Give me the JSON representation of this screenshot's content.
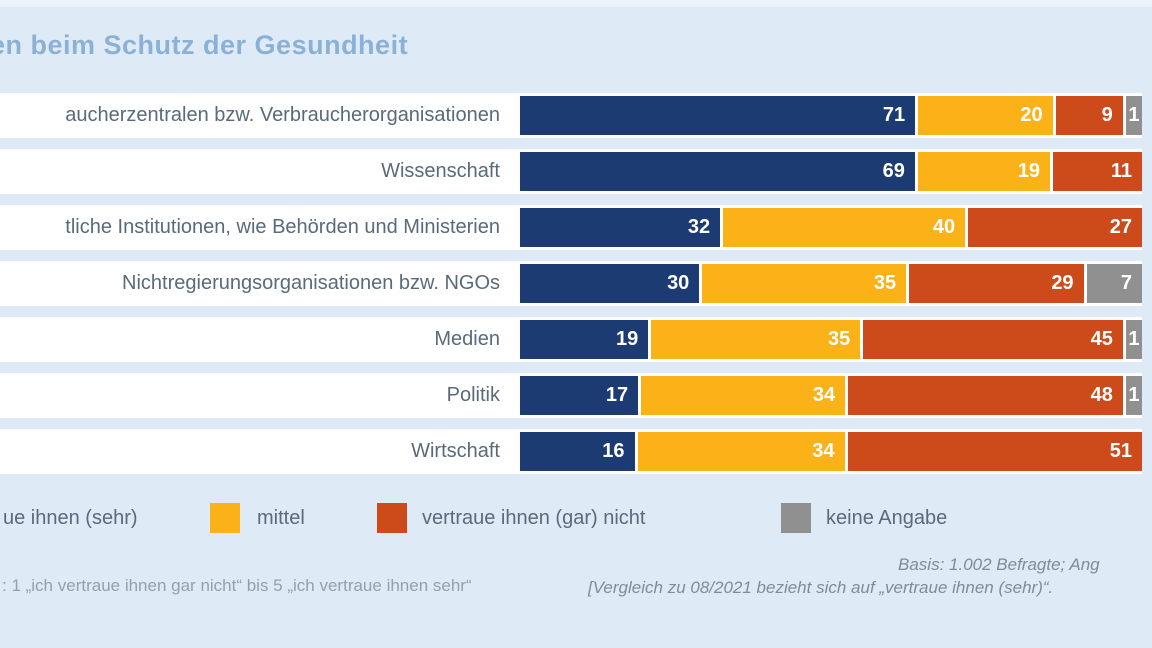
{
  "title": "en beim Schutz der Gesundheit",
  "colors": {
    "background": "#dfeaf7",
    "row_band": "#ffffff",
    "navy": "#1d3b73",
    "yellow": "#fbb118",
    "red": "#cd4a1b",
    "gray": "#909090",
    "title_text": "#8bb1d5",
    "label_text": "#5a6a7a"
  },
  "chart_data": {
    "type": "bar",
    "orientation": "horizontal",
    "stacked": true,
    "title": "en beim Schutz der Gesundheit",
    "xlabel": "",
    "ylabel": "",
    "xlim": [
      0,
      100
    ],
    "grid": false,
    "legend_position": "bottom",
    "value_unit": "percent",
    "categories": [
      "aucherzentralen bzw. Verbraucherorganisationen",
      "Wissenschaft",
      "tliche Institutionen, wie Behörden und Ministerien",
      "Nichtregierungsorganisationen bzw. NGOs",
      "Medien",
      "Politik",
      "Wirtschaft"
    ],
    "series": [
      {
        "name": "vertraue ihnen (sehr)",
        "color": "#1d3b73",
        "values": [
          71,
          69,
          32,
          30,
          19,
          17,
          16
        ]
      },
      {
        "name": "mittel",
        "color": "#fbb118",
        "values": [
          20,
          19,
          40,
          35,
          35,
          34,
          34
        ]
      },
      {
        "name": "vertraue ihnen (gar) nicht",
        "color": "#cd4a1b",
        "values": [
          9,
          11,
          27,
          29,
          45,
          48,
          51
        ]
      },
      {
        "name": "keine Angabe",
        "color": "#909090",
        "values": [
          1,
          0,
          0,
          7,
          1,
          1,
          0
        ]
      }
    ]
  },
  "legend": {
    "items": [
      {
        "label": "ue ihnen (sehr)",
        "color": "#1d3b73"
      },
      {
        "label": "mittel",
        "color": "#fbb118"
      },
      {
        "label": "vertraue ihnen (gar) nicht",
        "color": "#cd4a1b"
      },
      {
        "label": "keine Angabe",
        "color": "#909090"
      }
    ]
  },
  "footnotes": {
    "left": ": 1 „ich vertraue ihnen gar nicht“ bis 5 „ich vertraue ihnen sehr“",
    "right_line1": "Basis: 1.002 Befragte; Ang",
    "right_line2": "[Vergleich zu 08/2021 bezieht sich auf „vertraue ihnen (sehr)“."
  }
}
